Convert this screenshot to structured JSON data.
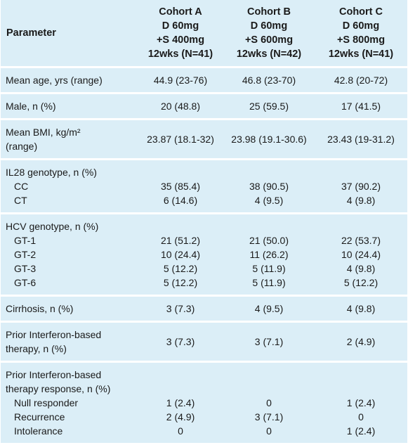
{
  "table": {
    "header": {
      "parameter": "Parameter",
      "cohorts": [
        [
          "Cohort A",
          "D 60mg",
          "+S 400mg",
          "12wks (N=41)"
        ],
        [
          "Cohort B",
          "D 60mg",
          "+S 600mg",
          "12wks (N=42)"
        ],
        [
          "Cohort C",
          "D 60mg",
          "+S 800mg",
          "12wks (N=41)"
        ]
      ]
    },
    "groups": [
      {
        "title": [
          "Mean age, yrs (range)"
        ],
        "values": [
          "44.9 (23-76)",
          "46.8 (23-70)",
          "42.8 (20-72)"
        ]
      },
      {
        "title": [
          "Male, n (%)"
        ],
        "values": [
          "20 (48.8)",
          "25 (59.5)",
          "17 (41.5)"
        ]
      },
      {
        "title": [
          "Mean BMI, kg/m²",
          "(range)"
        ],
        "values": [
          "23.87 (18.1-32)",
          "23.98 (19.1-30.6)",
          "23.43 (19-31.2)"
        ]
      },
      {
        "title": [
          "IL28 genotype, n (%)"
        ],
        "rows": [
          {
            "label": "CC",
            "values": [
              "35 (85.4)",
              "38 (90.5)",
              "37 (90.2)"
            ]
          },
          {
            "label": "CT",
            "values": [
              "6 (14.6)",
              "4 (9.5)",
              "4 (9.8)"
            ]
          }
        ]
      },
      {
        "title": [
          "HCV genotype, n (%)"
        ],
        "rows": [
          {
            "label": "GT-1",
            "values": [
              "21 (51.2)",
              "21 (50.0)",
              "22 (53.7)"
            ]
          },
          {
            "label": "GT-2",
            "values": [
              "10 (24.4)",
              "11 (26.2)",
              "10 (24.4)"
            ]
          },
          {
            "label": "GT-3",
            "values": [
              "5 (12.2)",
              "5 (11.9)",
              "4 (9.8)"
            ]
          },
          {
            "label": "GT-6",
            "values": [
              "5 (12.2)",
              "5 (11.9)",
              "5 (12.2)"
            ]
          }
        ]
      },
      {
        "title": [
          "Cirrhosis, n (%)"
        ],
        "values": [
          "3 (7.3)",
          "4 (9.5)",
          "4 (9.8)"
        ]
      },
      {
        "title": [
          "Prior Interferon-based",
          "therapy, n (%)"
        ],
        "values": [
          "3 (7.3)",
          "3 (7.1)",
          "2 (4.9)"
        ]
      },
      {
        "title": [
          "Prior Interferon-based",
          "therapy response, n (%)"
        ],
        "rows": [
          {
            "label": "Null responder",
            "values": [
              "1 (2.4)",
              "0",
              "1 (2.4)"
            ]
          },
          {
            "label": "Recurrence",
            "values": [
              "2 (4.9)",
              "3 (7.1)",
              "0"
            ]
          },
          {
            "label": "Intolerance",
            "values": [
              "0",
              "0",
              "1 (2.4)"
            ]
          }
        ]
      }
    ]
  }
}
